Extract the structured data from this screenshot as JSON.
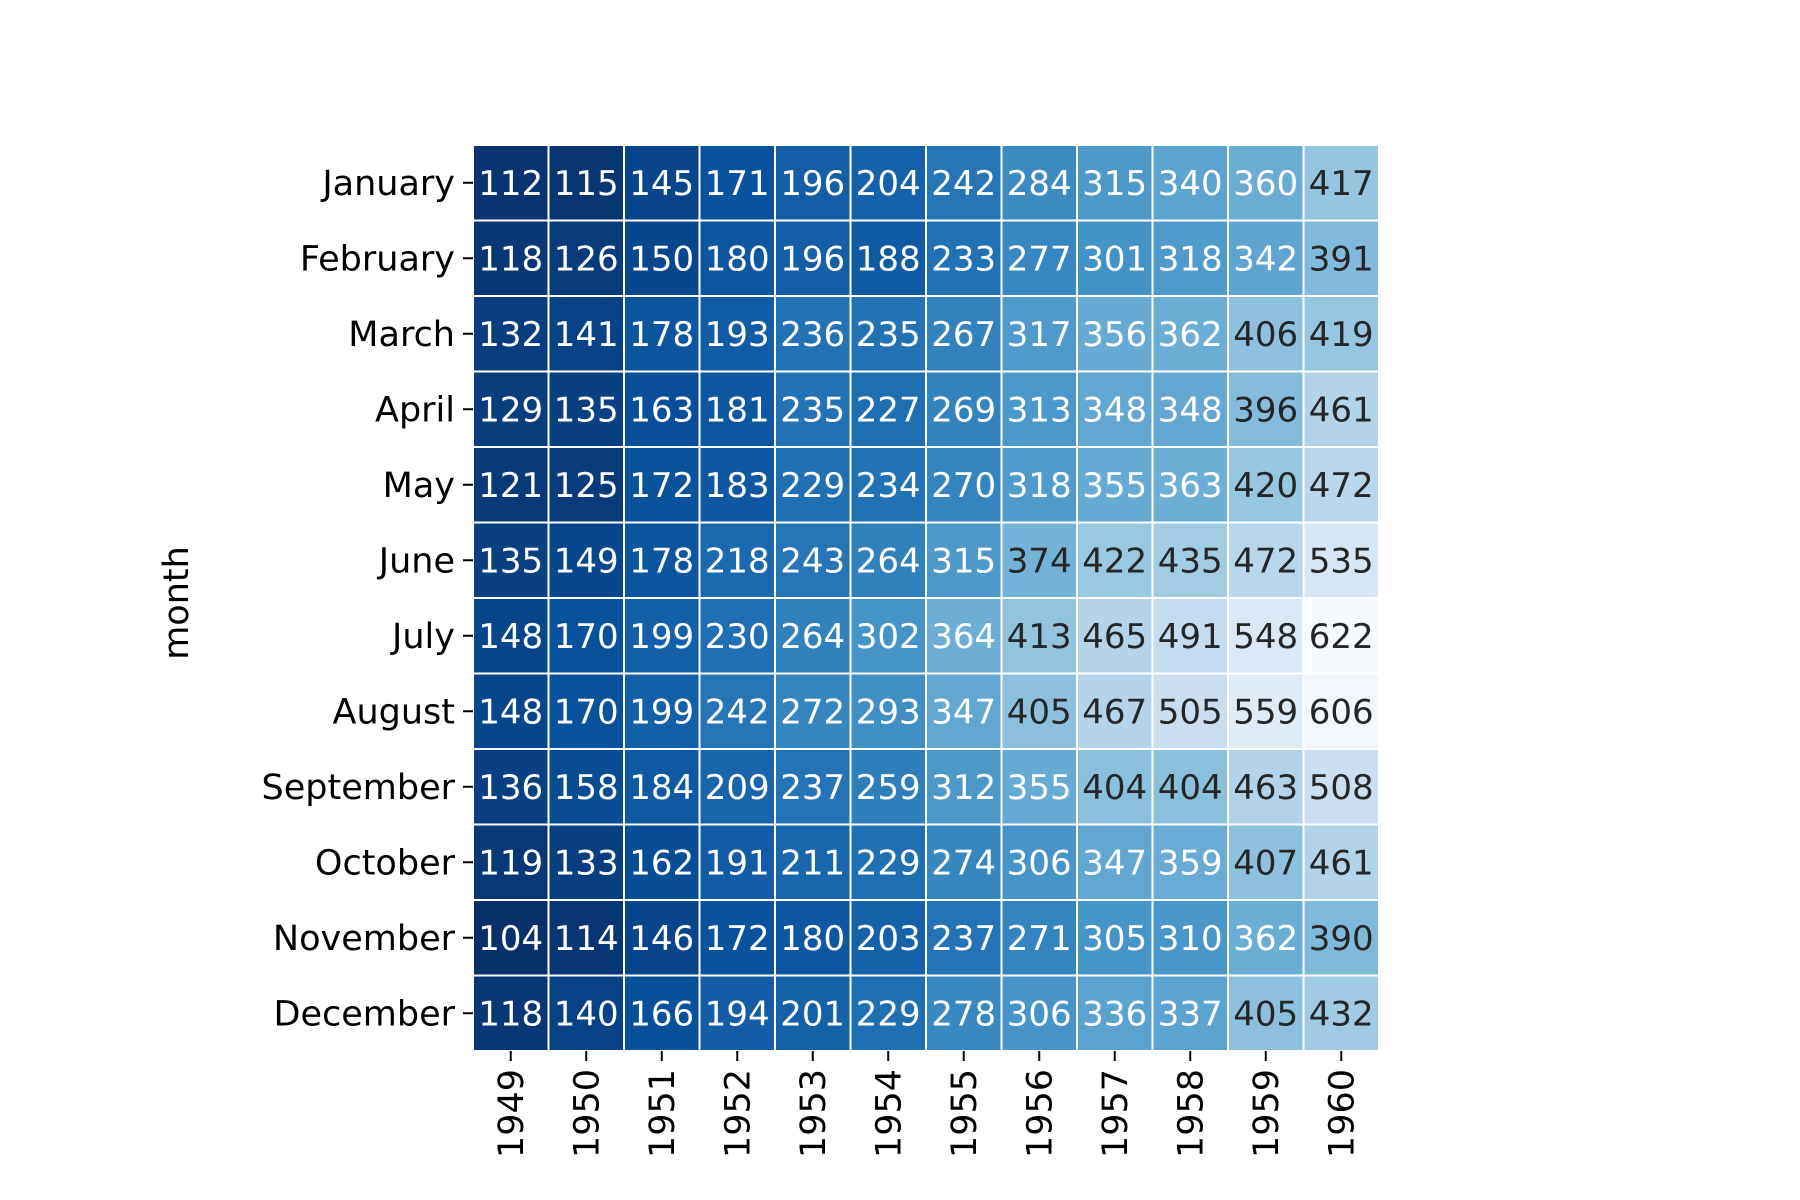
{
  "chart_data": {
    "type": "heatmap",
    "title": "",
    "xlabel": "",
    "ylabel": "month",
    "x": [
      "1949",
      "1950",
      "1951",
      "1952",
      "1953",
      "1954",
      "1955",
      "1956",
      "1957",
      "1958",
      "1959",
      "1960"
    ],
    "y": [
      "January",
      "February",
      "March",
      "April",
      "May",
      "June",
      "July",
      "August",
      "September",
      "October",
      "November",
      "December"
    ],
    "values": [
      [
        112,
        115,
        145,
        171,
        196,
        204,
        242,
        284,
        315,
        340,
        360,
        417
      ],
      [
        118,
        126,
        150,
        180,
        196,
        188,
        233,
        277,
        301,
        318,
        342,
        391
      ],
      [
        132,
        141,
        178,
        193,
        236,
        235,
        267,
        317,
        356,
        362,
        406,
        419
      ],
      [
        129,
        135,
        163,
        181,
        235,
        227,
        269,
        313,
        348,
        348,
        396,
        461
      ],
      [
        121,
        125,
        172,
        183,
        229,
        234,
        270,
        318,
        355,
        363,
        420,
        472
      ],
      [
        135,
        149,
        178,
        218,
        243,
        264,
        315,
        374,
        422,
        435,
        472,
        535
      ],
      [
        148,
        170,
        199,
        230,
        264,
        302,
        364,
        413,
        465,
        491,
        548,
        622
      ],
      [
        148,
        170,
        199,
        242,
        272,
        293,
        347,
        405,
        467,
        505,
        559,
        606
      ],
      [
        136,
        158,
        184,
        209,
        237,
        259,
        312,
        355,
        404,
        404,
        463,
        508
      ],
      [
        119,
        133,
        162,
        191,
        211,
        229,
        274,
        306,
        347,
        359,
        407,
        461
      ],
      [
        104,
        114,
        146,
        172,
        180,
        203,
        237,
        271,
        305,
        310,
        362,
        390
      ],
      [
        118,
        140,
        166,
        194,
        201,
        229,
        278,
        306,
        336,
        337,
        405,
        432
      ]
    ],
    "colormap": "Blues_r",
    "color_range": [
      104,
      622
    ],
    "annotations": true,
    "colorbar": false,
    "colors": {
      "dark": "#08306b",
      "light": "#f7fbff",
      "text_light": "#ffffff",
      "text_dark": "#262626",
      "cell_border": "#ffffff"
    }
  }
}
